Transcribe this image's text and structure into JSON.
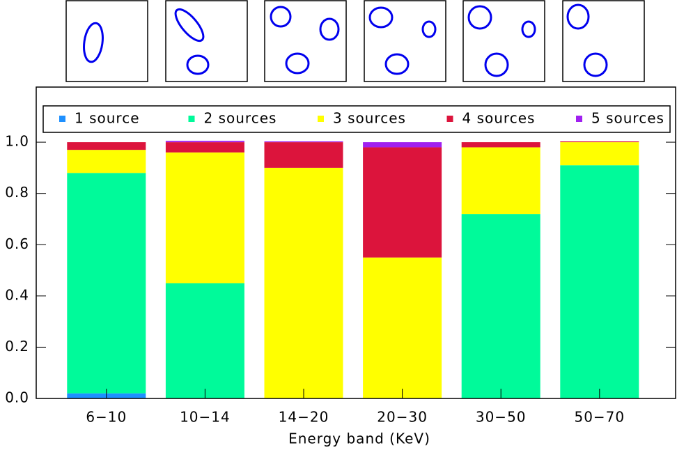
{
  "chart_data": {
    "type": "stacked_bar",
    "x_label": "Energy band (KeV)",
    "categories": [
      "6−10",
      "10−14",
      "14−20",
      "20−30",
      "30−50",
      "50−70"
    ],
    "series": [
      {
        "name": "1 source",
        "color": "#1e90ff",
        "values": [
          0.02,
          0,
          0,
          0,
          0,
          0
        ]
      },
      {
        "name": "2 sources",
        "color": "#00fa9a",
        "values": [
          0.86,
          0.45,
          0,
          0,
          0.72,
          0.91
        ]
      },
      {
        "name": "3 sources",
        "color": "#ffff00",
        "values": [
          0.09,
          0.51,
          0.9,
          0.55,
          0.26,
          0.09
        ]
      },
      {
        "name": "4 sources",
        "color": "#dc143c",
        "values": [
          0.03,
          0.04,
          0.1,
          0.43,
          0.02,
          0.003
        ]
      },
      {
        "name": "5 sources",
        "color": "#a020f0",
        "values": [
          0,
          0.005,
          0.003,
          0.02,
          0,
          0
        ]
      }
    ],
    "ylim": [
      0,
      1.215
    ],
    "yticks": [
      {
        "value": 0,
        "label": "0.0"
      },
      {
        "value": 0.2,
        "label": "0.2"
      },
      {
        "value": 0.4,
        "label": "0.4"
      },
      {
        "value": 0.6,
        "label": "0.6"
      },
      {
        "value": 0.8,
        "label": "0.8"
      },
      {
        "value": 1,
        "label": "1.0"
      }
    ],
    "legend": "top"
  }
}
